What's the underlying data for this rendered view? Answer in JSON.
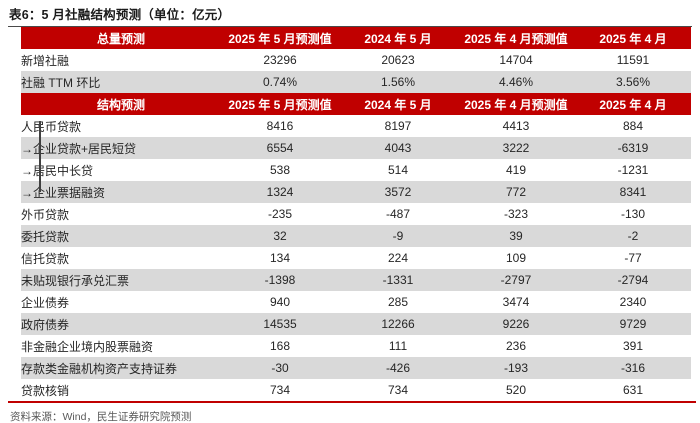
{
  "title": "表6：5 月社融结构预测（单位：亿元）",
  "unit": "亿元",
  "colors": {
    "header_red": "#c00000",
    "stripe_gray": "#d9d9d9",
    "rule_red": "#c00000"
  },
  "table": {
    "sections": [
      {
        "header_label": "总量预测",
        "columns": [
          "2025 年 5 月预测值",
          "2024 年 5 月",
          "2025 年 4 月预测值",
          "2025 年 4 月"
        ],
        "rows": [
          {
            "label": "新增社融",
            "values": [
              "23296",
              "20623",
              "14704",
              "11591"
            ]
          },
          {
            "label": "社融 TTM 环比",
            "values": [
              "0.74%",
              "1.56%",
              "4.46%",
              "3.56%"
            ]
          }
        ]
      },
      {
        "header_label": "结构预测",
        "columns": [
          "2025 年 5 月预测值",
          "2024 年 5 月",
          "2025 年 4 月预测值",
          "2025 年 4 月"
        ],
        "rows": [
          {
            "label": "人民币贷款",
            "tree": "start",
            "values": [
              "8416",
              "8197",
              "4413",
              "884"
            ]
          },
          {
            "label": "→企业贷款+居民短贷",
            "tree": "branch",
            "values": [
              "6554",
              "4043",
              "3222",
              "-6319"
            ]
          },
          {
            "label": "→居民中长贷",
            "tree": "branch",
            "values": [
              "538",
              "514",
              "419",
              "-1231"
            ]
          },
          {
            "label": "→企业票据融资",
            "tree": "end",
            "values": [
              "1324",
              "3572",
              "772",
              "8341"
            ]
          },
          {
            "label": "外币贷款",
            "values": [
              "-235",
              "-487",
              "-323",
              "-130"
            ]
          },
          {
            "label": "委托贷款",
            "values": [
              "32",
              "-9",
              "39",
              "-2"
            ]
          },
          {
            "label": "信托贷款",
            "values": [
              "134",
              "224",
              "109",
              "-77"
            ]
          },
          {
            "label": "未贴现银行承兑汇票",
            "values": [
              "-1398",
              "-1331",
              "-2797",
              "-2794"
            ]
          },
          {
            "label": "企业债券",
            "values": [
              "940",
              "285",
              "3474",
              "2340"
            ]
          },
          {
            "label": "政府债券",
            "values": [
              "14535",
              "12266",
              "9226",
              "9729"
            ]
          },
          {
            "label": "非金融企业境内股票融资",
            "values": [
              "168",
              "111",
              "236",
              "391"
            ]
          },
          {
            "label": "存款类金融机构资产支持证券",
            "values": [
              "-30",
              "-426",
              "-193",
              "-316"
            ]
          },
          {
            "label": "贷款核销",
            "values": [
              "734",
              "734",
              "520",
              "631"
            ]
          }
        ]
      }
    ]
  },
  "footer": "资料来源：Wind，民生证券研究院预测"
}
